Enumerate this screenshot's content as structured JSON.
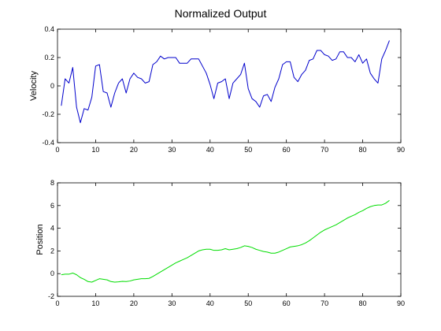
{
  "chart_data": [
    {
      "type": "line",
      "title": "Normalized Output",
      "xlabel": "",
      "ylabel": "Velocity",
      "xlim": [
        0,
        90
      ],
      "ylim": [
        -0.4,
        0.4
      ],
      "xticks": [
        0,
        10,
        20,
        30,
        40,
        50,
        60,
        70,
        80,
        90
      ],
      "yticks": [
        -0.4,
        -0.2,
        0,
        0.2,
        0.4
      ],
      "grid": false,
      "series": [
        {
          "color": "#0000cc",
          "x": [
            1,
            2,
            3,
            4,
            5,
            6,
            7,
            8,
            9,
            10,
            11,
            12,
            13,
            14,
            15,
            16,
            17,
            18,
            19,
            20,
            21,
            22,
            23,
            24,
            25,
            26,
            27,
            28,
            29,
            30,
            31,
            32,
            33,
            34,
            35,
            36,
            37,
            38,
            39,
            40,
            41,
            42,
            43,
            44,
            45,
            46,
            47,
            48,
            49,
            50,
            51,
            52,
            53,
            54,
            55,
            56,
            57,
            58,
            59,
            60,
            61,
            62,
            63,
            64,
            65,
            66,
            67,
            68,
            69,
            70,
            71,
            72,
            73,
            74,
            75,
            76,
            77,
            78,
            79,
            80,
            81,
            82,
            83,
            84,
            85,
            86,
            87
          ],
          "y": [
            -0.14,
            0.05,
            0.02,
            0.13,
            -0.15,
            -0.26,
            -0.16,
            -0.17,
            -0.08,
            0.14,
            0.15,
            -0.04,
            -0.05,
            -0.15,
            -0.05,
            0.02,
            0.05,
            -0.05,
            0.05,
            0.09,
            0.06,
            0.05,
            0.02,
            0.03,
            0.15,
            0.17,
            0.21,
            0.19,
            0.2,
            0.2,
            0.2,
            0.16,
            0.16,
            0.16,
            0.19,
            0.19,
            0.19,
            0.14,
            0.09,
            0.01,
            -0.09,
            0.02,
            0.03,
            0.05,
            -0.09,
            0.02,
            0.05,
            0.08,
            0.16,
            -0.02,
            -0.09,
            -0.11,
            -0.15,
            -0.07,
            -0.06,
            -0.11,
            -0.01,
            0.05,
            0.15,
            0.17,
            0.17,
            0.06,
            0.03,
            0.08,
            0.11,
            0.18,
            0.19,
            0.25,
            0.25,
            0.22,
            0.21,
            0.18,
            0.19,
            0.24,
            0.24,
            0.2,
            0.2,
            0.17,
            0.22,
            0.16,
            0.19,
            0.09,
            0.05,
            0.02,
            0.19,
            0.25,
            0.32
          ]
        }
      ]
    },
    {
      "type": "line",
      "title": "",
      "xlabel": "",
      "ylabel": "Position",
      "xlim": [
        0,
        90
      ],
      "ylim": [
        -2,
        8
      ],
      "xticks": [
        0,
        10,
        20,
        30,
        40,
        50,
        60,
        70,
        80,
        90
      ],
      "yticks": [
        -2,
        0,
        2,
        4,
        6,
        8
      ],
      "grid": false,
      "series": [
        {
          "color": "#00dd00",
          "x": [
            1,
            2,
            3,
            4,
            5,
            6,
            7,
            8,
            9,
            10,
            11,
            12,
            13,
            14,
            15,
            16,
            17,
            18,
            19,
            20,
            21,
            22,
            23,
            24,
            25,
            26,
            27,
            28,
            29,
            30,
            31,
            32,
            33,
            34,
            35,
            36,
            37,
            38,
            39,
            40,
            41,
            42,
            43,
            44,
            45,
            46,
            47,
            48,
            49,
            50,
            51,
            52,
            53,
            54,
            55,
            56,
            57,
            58,
            59,
            60,
            61,
            62,
            63,
            64,
            65,
            66,
            67,
            68,
            69,
            70,
            71,
            72,
            73,
            74,
            75,
            76,
            77,
            78,
            79,
            80,
            81,
            82,
            83,
            84,
            85,
            86,
            87
          ],
          "y": [
            -0.1,
            -0.05,
            -0.05,
            0.05,
            -0.1,
            -0.35,
            -0.5,
            -0.7,
            -0.75,
            -0.6,
            -0.45,
            -0.5,
            -0.55,
            -0.7,
            -0.75,
            -0.72,
            -0.68,
            -0.7,
            -0.65,
            -0.55,
            -0.5,
            -0.45,
            -0.45,
            -0.42,
            -0.25,
            -0.05,
            0.15,
            0.35,
            0.55,
            0.75,
            0.95,
            1.1,
            1.25,
            1.4,
            1.6,
            1.8,
            2.0,
            2.1,
            2.15,
            2.15,
            2.05,
            2.05,
            2.1,
            2.2,
            2.1,
            2.15,
            2.2,
            2.3,
            2.45,
            2.4,
            2.3,
            2.15,
            2.05,
            1.95,
            1.9,
            1.8,
            1.8,
            1.9,
            2.05,
            2.2,
            2.35,
            2.4,
            2.45,
            2.55,
            2.7,
            2.9,
            3.15,
            3.4,
            3.65,
            3.85,
            4.0,
            4.15,
            4.3,
            4.5,
            4.7,
            4.9,
            5.05,
            5.2,
            5.4,
            5.55,
            5.75,
            5.9,
            6.0,
            6.05,
            6.05,
            6.2,
            6.45
          ]
        }
      ]
    }
  ]
}
